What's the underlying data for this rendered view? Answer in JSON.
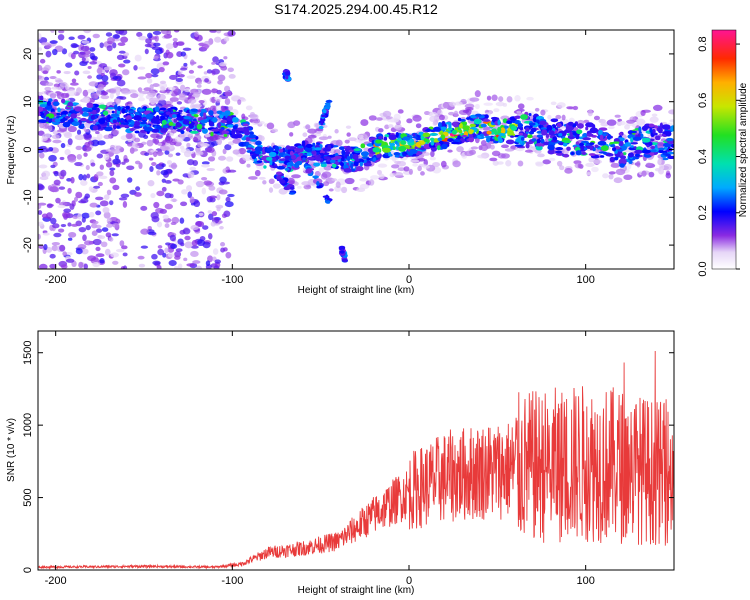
{
  "title": "S174.2025.294.00.45.R12",
  "chart_data": [
    {
      "type": "heatmap",
      "xlabel": "Height of straight line (km)",
      "ylabel": "Frequency (Hz)",
      "xlim": [
        -210,
        150
      ],
      "ylim": [
        -25,
        25
      ],
      "xticks": [
        -200,
        -100,
        0,
        100
      ],
      "yticks": [
        -20,
        -10,
        0,
        10,
        20
      ],
      "colorbar": {
        "label": "Normalized spectral amplitude",
        "range": [
          0,
          0.85
        ],
        "ticks": [
          "0.0",
          "0.2",
          "0.4",
          "0.6",
          "0.8"
        ]
      },
      "ridge": {
        "description_points_x": [
          -200,
          -180,
          -150,
          -120,
          -100,
          -92,
          -85,
          -78,
          -70,
          -60,
          -50,
          -40,
          -30,
          -20,
          -10,
          0,
          10,
          20,
          30,
          40,
          50,
          60,
          70,
          80,
          90,
          100,
          110,
          120,
          130,
          140,
          150
        ],
        "frequency_hz": [
          8,
          7,
          6,
          6,
          5,
          3,
          -1,
          -2,
          -2,
          -1,
          -1,
          -2,
          -2,
          0,
          1,
          1,
          2,
          3,
          4,
          5,
          4,
          4,
          4,
          3,
          2,
          2,
          1,
          0,
          1,
          2,
          1
        ]
      }
    },
    {
      "type": "line",
      "xlabel": "Height of straight line (km)",
      "ylabel": "SNR (10 * v/v)",
      "xlim": [
        -210,
        150
      ],
      "ylim": [
        0,
        1650
      ],
      "xticks": [
        -200,
        -100,
        0,
        100
      ],
      "yticks": [
        0,
        500,
        1000,
        1500
      ],
      "series": [
        {
          "name": "SNR",
          "color": "#e83a3a",
          "envelope_x": [
            -210,
            -150,
            -110,
            -95,
            -80,
            -60,
            -40,
            -20,
            0,
            20,
            40,
            60,
            80,
            100,
            120,
            150
          ],
          "envelope_mean": [
            20,
            25,
            20,
            40,
            120,
            150,
            200,
            380,
            540,
            640,
            680,
            700,
            720,
            740,
            720,
            650
          ]
        }
      ]
    }
  ]
}
